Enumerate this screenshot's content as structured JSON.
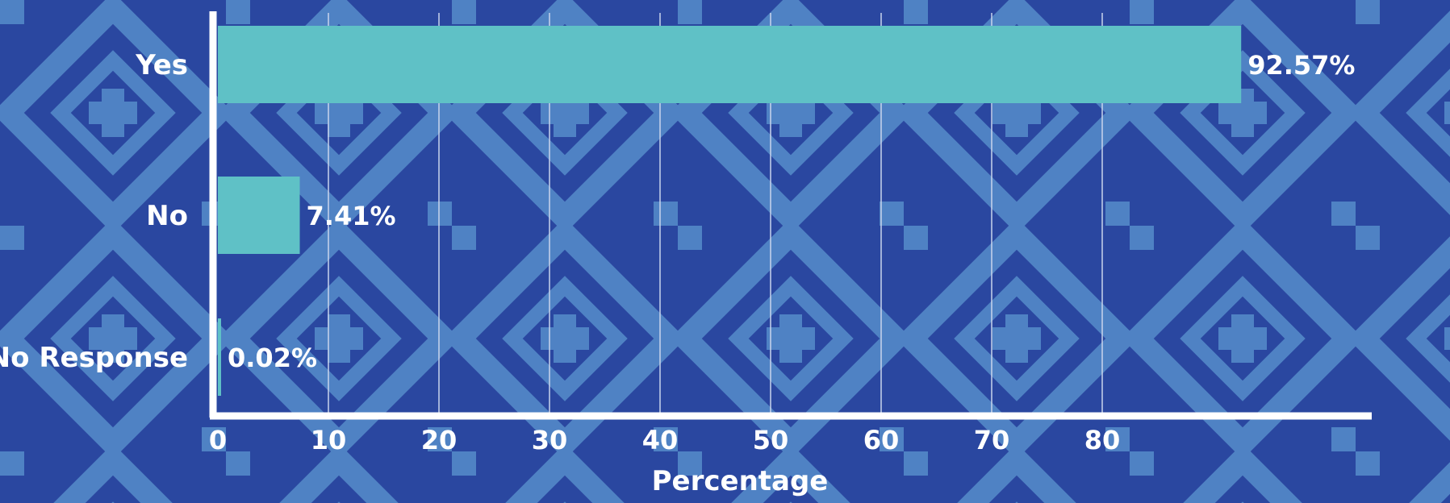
{
  "chart_data": {
    "type": "bar",
    "orientation": "horizontal",
    "categories": [
      "Yes",
      "No",
      "No Response"
    ],
    "values": [
      92.57,
      7.41,
      0.02
    ],
    "value_labels": [
      "92.57%",
      "7.41%",
      "0.02%"
    ],
    "xlabel": "Percentage",
    "ylabel": "",
    "xlim": [
      0,
      93
    ],
    "xticks": [
      0,
      10,
      20,
      30,
      40,
      50,
      60,
      70,
      80
    ],
    "xtick_labels": [
      "0",
      "10",
      "20",
      "30",
      "40",
      "50",
      "60",
      "70",
      "80"
    ],
    "grid": "vertical",
    "legend": "none"
  },
  "colors": {
    "bar": "#5fc1c6",
    "background_dark": "#2a47a0",
    "background_light": "#4f82c4",
    "axis": "#ffffff",
    "gridline": "#c9d4ec",
    "text": "#ffffff"
  }
}
